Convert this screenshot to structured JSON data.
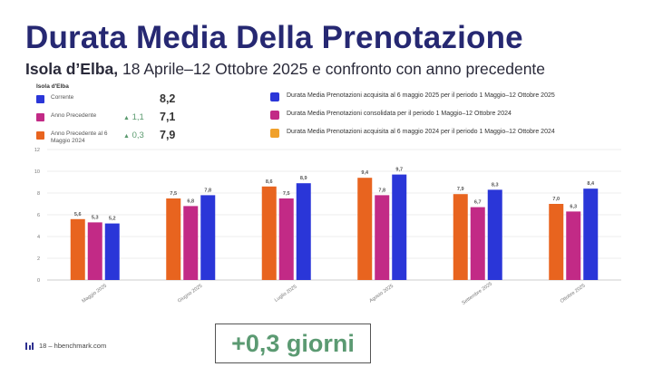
{
  "header": {
    "title": "Durata Media Della Prenotazione",
    "subtitle_bold": "Isola d’Elba,",
    "subtitle_rest": " 18 Aprile–12 Ottobre 2025 e confronto con anno precedente"
  },
  "summary": {
    "region": "Isola d'Elba",
    "rows": [
      {
        "label": "Corrente",
        "value": "8,2",
        "delta": "",
        "color": "#2a36d8"
      },
      {
        "label": "Anno Precedente",
        "value": "7,1",
        "delta": "1,1",
        "color": "#c22a86"
      },
      {
        "label": "Anno Precedente al 6 Maggio 2024",
        "value": "7,9",
        "delta": "0,3",
        "color": "#e8641f"
      }
    ]
  },
  "legend": [
    {
      "text": "Durata Media Prenotazioni acquisita al 6 maggio 2025 per il periodo 1 Maggio–12 Ottobre 2025",
      "color": "#2a36d8"
    },
    {
      "text": "Durata Media Prenotazioni consolidata per il periodo 1 Maggio–12 Ottobre 2024",
      "color": "#c22a86"
    },
    {
      "text": "Durata Media Prenotazioni acquisita al 6 maggio 2024 per il periodo 1 Maggio–12 Ottobre 2024",
      "color": "#f0a02a"
    }
  ],
  "chart_data": {
    "type": "bar",
    "categories": [
      "Maggio 2025",
      "Giugno 2025",
      "Luglio 2025",
      "Agosto 2025",
      "Settembre 2025",
      "Ottobre 2025"
    ],
    "series": [
      {
        "values": [
          5.6,
          7.5,
          8.6,
          9.4,
          7.9,
          7.0
        ],
        "labels": [
          "5,6",
          "7,5",
          "8,6",
          "9,4",
          "7,9",
          "7,0"
        ],
        "color": "#e8641f"
      },
      {
        "values": [
          5.3,
          6.8,
          7.5,
          7.8,
          6.7,
          6.3
        ],
        "labels": [
          "5,3",
          "6,8",
          "7,5",
          "7,8",
          "6,7",
          "6,3"
        ],
        "color": "#c22a86"
      },
      {
        "values": [
          5.2,
          7.8,
          8.9,
          9.7,
          8.3,
          8.4
        ],
        "labels": [
          "5,2",
          "7,8",
          "8,9",
          "9,7",
          "8,3",
          "8,4"
        ],
        "color": "#2a36d8"
      }
    ],
    "ylim": [
      0,
      12
    ],
    "yticks": [
      0,
      2,
      4,
      6,
      8,
      10,
      12
    ],
    "grid": true
  },
  "footer": {
    "text": "18 – hbenchmark.com"
  },
  "callout": {
    "text": "+0,3 giorni"
  }
}
